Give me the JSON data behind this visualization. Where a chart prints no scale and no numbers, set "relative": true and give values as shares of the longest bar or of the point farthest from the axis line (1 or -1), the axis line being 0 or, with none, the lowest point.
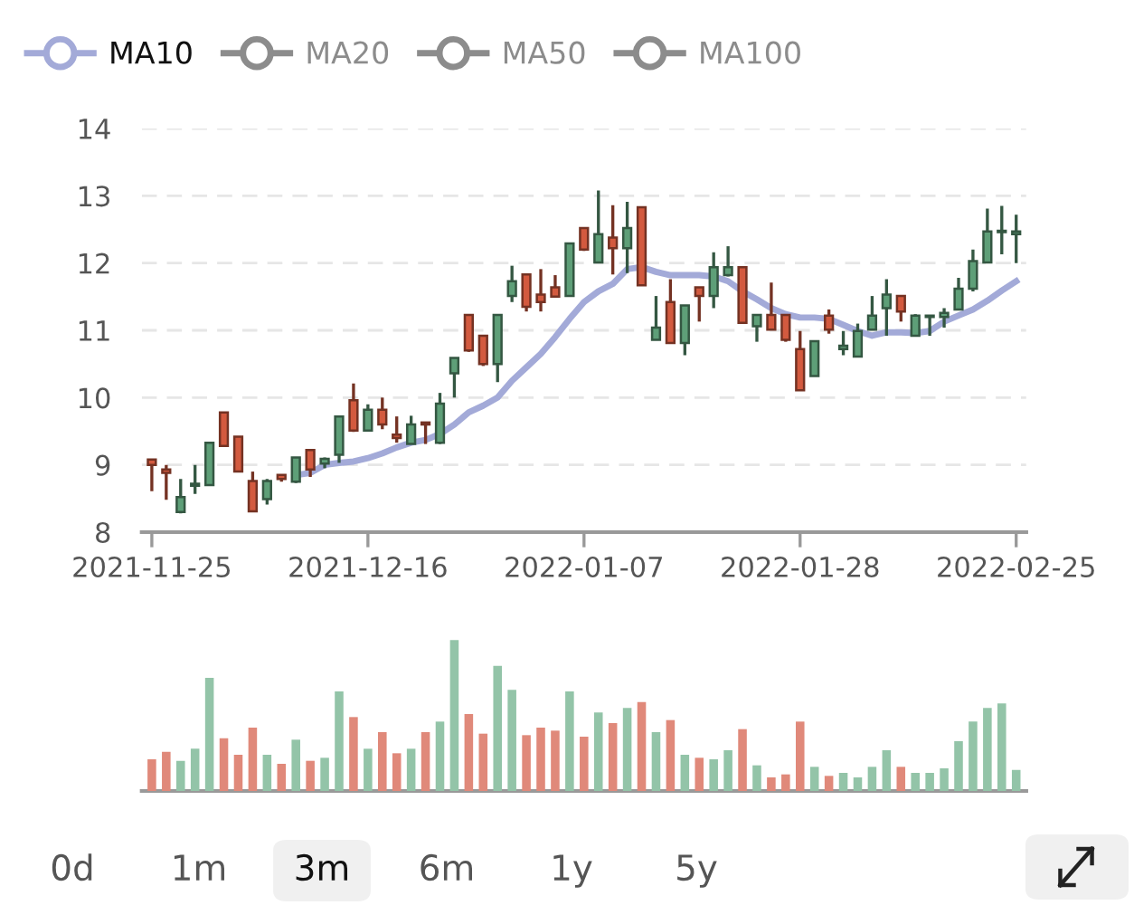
{
  "chart_data": [
    {
      "type": "candlestick",
      "categories": [
        "2021-11-25",
        null,
        null,
        null,
        null,
        null,
        null,
        null,
        null,
        null,
        null,
        null,
        null,
        null,
        null,
        "2021-12-16",
        null,
        null,
        null,
        null,
        null,
        null,
        null,
        null,
        null,
        null,
        null,
        null,
        null,
        null,
        "2022-01-07",
        null,
        null,
        null,
        null,
        null,
        null,
        null,
        null,
        null,
        null,
        null,
        null,
        null,
        null,
        "2022-01-28",
        null,
        null,
        null,
        null,
        null,
        null,
        null,
        null,
        null,
        null,
        null,
        null,
        null,
        null,
        "2022-02-25"
      ],
      "ylim": [
        8,
        14
      ],
      "yticks": [
        8,
        9,
        10,
        11,
        12,
        13,
        14
      ],
      "grid": "y",
      "legend": "top left",
      "series": [
        {
          "type": "candlestick",
          "ohlc": [
            [
              9.08,
              9.08,
              8.61,
              9.0
            ],
            [
              8.93,
              9.0,
              8.48,
              8.88
            ],
            [
              8.3,
              8.79,
              8.28,
              8.52
            ],
            [
              8.69,
              9.0,
              8.57,
              8.72
            ],
            [
              8.7,
              9.33,
              8.7,
              9.33
            ],
            [
              9.78,
              9.78,
              9.28,
              9.28
            ],
            [
              9.42,
              9.42,
              8.9,
              8.9
            ],
            [
              8.76,
              8.9,
              8.3,
              8.31
            ],
            [
              8.49,
              8.79,
              8.41,
              8.76
            ],
            [
              8.85,
              8.85,
              8.75,
              8.79
            ],
            [
              8.75,
              9.11,
              8.73,
              9.11
            ],
            [
              9.22,
              9.22,
              8.82,
              8.93
            ],
            [
              9.02,
              9.11,
              8.95,
              9.09
            ],
            [
              9.15,
              9.72,
              9.03,
              9.72
            ],
            [
              9.96,
              10.21,
              9.49,
              9.51
            ],
            [
              9.51,
              9.9,
              9.51,
              9.82
            ],
            [
              9.82,
              10.0,
              9.53,
              9.6
            ],
            [
              9.45,
              9.72,
              9.33,
              9.4
            ],
            [
              9.31,
              9.73,
              9.31,
              9.6
            ],
            [
              9.63,
              9.63,
              9.31,
              9.6
            ],
            [
              9.33,
              10.07,
              9.31,
              9.91
            ],
            [
              10.36,
              10.59,
              10.0,
              10.59
            ],
            [
              11.23,
              11.23,
              10.68,
              10.7
            ],
            [
              10.92,
              10.92,
              10.47,
              10.5
            ],
            [
              10.5,
              11.23,
              10.23,
              11.23
            ],
            [
              11.51,
              11.96,
              11.42,
              11.73
            ],
            [
              11.83,
              11.83,
              11.28,
              11.35
            ],
            [
              11.53,
              11.91,
              11.28,
              11.42
            ],
            [
              11.64,
              11.82,
              11.49,
              11.5
            ],
            [
              11.51,
              12.29,
              11.51,
              12.29
            ],
            [
              12.52,
              12.52,
              12.18,
              12.2
            ],
            [
              12.01,
              13.08,
              12.01,
              12.43
            ],
            [
              12.38,
              12.86,
              11.83,
              12.22
            ],
            [
              12.22,
              12.91,
              11.85,
              12.52
            ],
            [
              12.83,
              12.83,
              11.67,
              11.67
            ],
            [
              10.86,
              11.51,
              10.86,
              11.04
            ],
            [
              11.42,
              11.76,
              10.81,
              10.81
            ],
            [
              10.81,
              11.37,
              10.63,
              11.37
            ],
            [
              11.64,
              11.64,
              11.13,
              11.51
            ],
            [
              11.51,
              12.16,
              11.33,
              11.94
            ],
            [
              11.82,
              12.25,
              11.8,
              11.94
            ],
            [
              11.94,
              11.95,
              11.11,
              11.11
            ],
            [
              11.06,
              11.23,
              10.83,
              11.23
            ],
            [
              11.23,
              11.71,
              11.01,
              11.01
            ],
            [
              11.23,
              11.23,
              10.83,
              10.86
            ],
            [
              10.72,
              10.99,
              10.11,
              10.11
            ],
            [
              10.32,
              10.84,
              10.32,
              10.84
            ],
            [
              11.22,
              11.31,
              10.95,
              11.01
            ],
            [
              10.72,
              10.99,
              10.63,
              10.77
            ],
            [
              10.61,
              11.1,
              10.61,
              10.99
            ],
            [
              11.01,
              11.51,
              11.01,
              11.22
            ],
            [
              11.33,
              11.76,
              10.92,
              11.53
            ],
            [
              11.51,
              11.51,
              11.13,
              11.28
            ],
            [
              10.92,
              11.24,
              10.92,
              11.22
            ],
            [
              11.2,
              11.22,
              10.92,
              11.22
            ],
            [
              11.2,
              11.33,
              11.04,
              11.26
            ],
            [
              11.31,
              11.78,
              11.31,
              11.62
            ],
            [
              11.62,
              12.2,
              11.58,
              12.03
            ],
            [
              12.01,
              12.81,
              12.01,
              12.47
            ],
            [
              12.46,
              12.85,
              12.13,
              12.48
            ],
            [
              12.43,
              12.72,
              12.0,
              12.47
            ]
          ],
          "colors": [
            "#d35a3f",
            "#d35a3f",
            "#5e9f78",
            "#5e9f78",
            "#5e9f78",
            "#d35a3f",
            "#d35a3f",
            "#d35a3f",
            "#5e9f78",
            "#d35a3f",
            "#5e9f78",
            "#d35a3f",
            "#5e9f78",
            "#5e9f78",
            "#d35a3f",
            "#5e9f78",
            "#d35a3f",
            "#d35a3f",
            "#5e9f78",
            "#d35a3f",
            "#5e9f78",
            "#5e9f78",
            "#d35a3f",
            "#d35a3f",
            "#5e9f78",
            "#5e9f78",
            "#d35a3f",
            "#d35a3f",
            "#d35a3f",
            "#5e9f78",
            "#d35a3f",
            "#5e9f78",
            "#d35a3f",
            "#5e9f78",
            "#d35a3f",
            "#5e9f78",
            "#d35a3f",
            "#5e9f78",
            "#d35a3f",
            "#5e9f78",
            "#5e9f78",
            "#d35a3f",
            "#5e9f78",
            "#d35a3f",
            "#d35a3f",
            "#d35a3f",
            "#5e9f78",
            "#d35a3f",
            "#5e9f78",
            "#5e9f78",
            "#5e9f78",
            "#5e9f78",
            "#d35a3f",
            "#5e9f78",
            "#5e9f78",
            "#5e9f78",
            "#5e9f78",
            "#5e9f78",
            "#5e9f78",
            "#5e9f78",
            "#5e9f78"
          ]
        },
        {
          "type": "line",
          "name": "MA10",
          "color": "#a3aad8",
          "values": [
            null,
            null,
            null,
            null,
            null,
            null,
            null,
            null,
            null,
            null,
            8.85,
            8.88,
            9.0,
            9.03,
            9.05,
            9.1,
            9.17,
            9.26,
            9.33,
            9.37,
            9.46,
            9.6,
            9.78,
            9.88,
            10.0,
            10.25,
            10.45,
            10.65,
            10.9,
            11.17,
            11.42,
            11.58,
            11.69,
            11.91,
            11.94,
            11.87,
            11.82,
            11.82,
            11.82,
            11.8,
            11.73,
            11.58,
            11.46,
            11.33,
            11.24,
            11.19,
            11.19,
            11.17,
            11.08,
            10.99,
            10.92,
            10.97,
            10.97,
            10.96,
            10.99,
            11.13,
            11.22,
            11.31,
            11.44,
            11.59,
            11.73
          ]
        },
        {
          "type": "line",
          "name": "MA20",
          "color": "#8c8c8c",
          "values": [
            null,
            null,
            null,
            null,
            null,
            null,
            null,
            null,
            null,
            null,
            null,
            null,
            null,
            null,
            null,
            null,
            null,
            null,
            null,
            null,
            null,
            null,
            null,
            null,
            null,
            null,
            null,
            null,
            null,
            null,
            null,
            null,
            null,
            null,
            null,
            null,
            null,
            null,
            null,
            null,
            null,
            null,
            null,
            null,
            null,
            null,
            null,
            null,
            null,
            null,
            null,
            null,
            null,
            null,
            null,
            null,
            null,
            null,
            null,
            null,
            null
          ]
        },
        {
          "type": "line",
          "name": "MA50",
          "color": "#8c8c8c",
          "values": [
            null,
            null,
            null,
            null,
            null,
            null,
            null,
            null,
            null,
            null,
            null,
            null,
            null,
            null,
            null,
            null,
            null,
            null,
            null,
            null,
            null,
            null,
            null,
            null,
            null,
            null,
            null,
            null,
            null,
            null,
            null,
            null,
            null,
            null,
            null,
            null,
            null,
            null,
            null,
            null,
            null,
            null,
            null,
            null,
            null,
            null,
            null,
            null,
            null,
            null,
            null,
            null,
            null,
            null,
            null,
            null,
            null,
            null,
            null,
            null,
            null
          ]
        },
        {
          "type": "line",
          "name": "MA100",
          "color": "#8c8c8c",
          "values": [
            null,
            null,
            null,
            null,
            null,
            null,
            null,
            null,
            null,
            null,
            null,
            null,
            null,
            null,
            null,
            null,
            null,
            null,
            null,
            null,
            null,
            null,
            null,
            null,
            null,
            null,
            null,
            null,
            null,
            null,
            null,
            null,
            null,
            null,
            null,
            null,
            null,
            null,
            null,
            null,
            null,
            null,
            null,
            null,
            null,
            null,
            null,
            null,
            null,
            null,
            null,
            null,
            null,
            null,
            null,
            null,
            null,
            null,
            null,
            null,
            null
          ]
        }
      ]
    },
    {
      "type": "bar",
      "relative": true,
      "categories": [
        null,
        null,
        null,
        null,
        null,
        null,
        null,
        null,
        null,
        null,
        null,
        null,
        null,
        null,
        null,
        null,
        null,
        null,
        null,
        null,
        null,
        null,
        null,
        null,
        null,
        null,
        null,
        null,
        null,
        null,
        null,
        null,
        null,
        null,
        null,
        null,
        null,
        null,
        null,
        null,
        null,
        null,
        null,
        null,
        null,
        null,
        null,
        null,
        null,
        null,
        null,
        null,
        null,
        null,
        null,
        null,
        null,
        null,
        null,
        null,
        null
      ],
      "values": [
        0.21,
        0.26,
        0.2,
        0.28,
        0.75,
        0.35,
        0.24,
        0.42,
        0.24,
        0.18,
        0.34,
        0.2,
        0.22,
        0.66,
        0.49,
        0.28,
        0.39,
        0.25,
        0.28,
        0.39,
        0.46,
        1,
        0.51,
        0.38,
        0.83,
        0.67,
        0.37,
        0.42,
        0.4,
        0.66,
        0.36,
        0.52,
        0.45,
        0.55,
        0.59,
        0.39,
        0.47,
        0.24,
        0.22,
        0.21,
        0.27,
        0.41,
        0.17,
        0.09,
        0.11,
        0.46,
        0.16,
        0.1,
        0.12,
        0.09,
        0.16,
        0.27,
        0.16,
        0.12,
        0.12,
        0.15,
        0.33,
        0.46,
        0.55,
        0.58,
        0.14
      ],
      "colors": [
        "#e0897a",
        "#e0897a",
        "#93c4a8",
        "#93c4a8",
        "#93c4a8",
        "#e0897a",
        "#e0897a",
        "#e0897a",
        "#93c4a8",
        "#e0897a",
        "#93c4a8",
        "#e0897a",
        "#93c4a8",
        "#93c4a8",
        "#e0897a",
        "#93c4a8",
        "#e0897a",
        "#e0897a",
        "#93c4a8",
        "#e0897a",
        "#93c4a8",
        "#93c4a8",
        "#e0897a",
        "#e0897a",
        "#93c4a8",
        "#93c4a8",
        "#e0897a",
        "#e0897a",
        "#e0897a",
        "#93c4a8",
        "#e0897a",
        "#93c4a8",
        "#e0897a",
        "#93c4a8",
        "#e0897a",
        "#93c4a8",
        "#e0897a",
        "#93c4a8",
        "#e0897a",
        "#93c4a8",
        "#93c4a8",
        "#e0897a",
        "#93c4a8",
        "#e0897a",
        "#e0897a",
        "#e0897a",
        "#93c4a8",
        "#e0897a",
        "#93c4a8",
        "#93c4a8",
        "#93c4a8",
        "#93c4a8",
        "#e0897a",
        "#93c4a8",
        "#93c4a8",
        "#93c4a8",
        "#93c4a8",
        "#93c4a8",
        "#93c4a8",
        "#93c4a8",
        "#93c4a8"
      ],
      "annotations": [
        "0d",
        "1m",
        "3m",
        "6m",
        "1y",
        "5y"
      ]
    }
  ]
}
